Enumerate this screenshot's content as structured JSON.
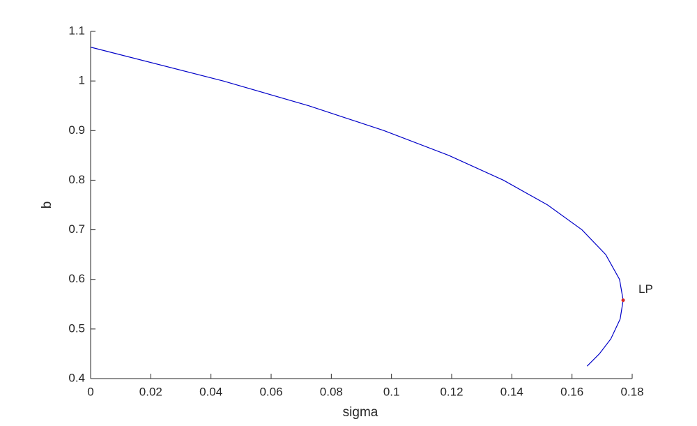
{
  "chart_data": {
    "type": "line",
    "xlabel": "sigma",
    "ylabel": "b",
    "x": [
      0.0001,
      0.0441,
      0.0725,
      0.0975,
      0.119,
      0.1372,
      0.1519,
      0.1633,
      0.1712,
      0.1758,
      0.177,
      0.176,
      0.1729,
      0.1691,
      0.165
    ],
    "series": [
      {
        "color": "#0000c8",
        "values": [
          1.068,
          1.0,
          0.95,
          0.9,
          0.85,
          0.8,
          0.75,
          0.7,
          0.65,
          0.6,
          0.558,
          0.52,
          0.48,
          0.45,
          0.425
        ]
      }
    ],
    "annotations": [
      {
        "text": "LP",
        "x": 0.177,
        "y": 0.558,
        "color": "#d62728"
      }
    ],
    "xlim": [
      0,
      0.18
    ],
    "ylim": [
      0.4,
      1.1
    ],
    "xticks": [
      0,
      0.02,
      0.04,
      0.06,
      0.08,
      0.1,
      0.12,
      0.14,
      0.16,
      0.18
    ],
    "yticks": [
      0.4,
      0.5,
      0.6,
      0.7,
      0.8,
      0.9,
      1,
      1.1
    ]
  }
}
